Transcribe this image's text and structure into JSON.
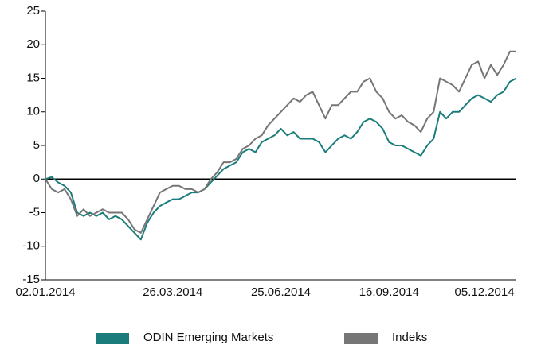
{
  "chart_data": {
    "type": "line",
    "categories": [
      "02.01.2014",
      null,
      null,
      null,
      null,
      null,
      null,
      null,
      null,
      null,
      null,
      null,
      null,
      null,
      null,
      null,
      null,
      null,
      null,
      null,
      "26.03.2014",
      null,
      null,
      null,
      null,
      null,
      null,
      null,
      null,
      null,
      null,
      null,
      null,
      null,
      null,
      null,
      null,
      "25.06.2014",
      null,
      null,
      null,
      null,
      null,
      null,
      null,
      null,
      null,
      null,
      null,
      null,
      null,
      null,
      null,
      null,
      "16.09.2014",
      null,
      null,
      null,
      null,
      null,
      null,
      null,
      null,
      null,
      null,
      null,
      null,
      null,
      null,
      "05.12.2014",
      null,
      null,
      null,
      null,
      null
    ],
    "series": [
      {
        "name": "ODIN Emerging Markets",
        "color": "#1a7d7b",
        "values": [
          0,
          0.3,
          -0.5,
          -1,
          -2,
          -5,
          -5.5,
          -5,
          -5.5,
          -5,
          -6,
          -5.5,
          -6,
          -7,
          -8,
          -9,
          -6.5,
          -5,
          -4,
          -3.5,
          -3,
          -3,
          -2.5,
          -2,
          -2,
          -1.5,
          -0.5,
          0.5,
          1.5,
          2,
          2.5,
          4,
          4.5,
          4,
          5.5,
          6,
          6.5,
          7.5,
          6.5,
          7,
          6,
          6,
          6,
          5.5,
          4,
          5,
          6,
          6.5,
          6,
          7,
          8.5,
          9,
          8.5,
          7.5,
          5.5,
          5,
          5,
          4.5,
          4,
          3.5,
          5,
          6,
          10,
          9,
          10,
          10,
          11,
          12,
          12.5,
          12,
          11.5,
          12.5,
          13,
          14.5,
          15
        ]
      },
      {
        "name": "Indeks",
        "color": "#767676",
        "values": [
          0,
          -1.5,
          -2,
          -1.5,
          -3,
          -5.5,
          -4.5,
          -5.5,
          -5,
          -4.5,
          -5,
          -5,
          -5,
          -6,
          -7.5,
          -8,
          -6,
          -4,
          -2,
          -1.5,
          -1,
          -1,
          -1.5,
          -1.5,
          -2,
          -1.5,
          0,
          1,
          2.5,
          2.5,
          3,
          4.5,
          5,
          6,
          6.5,
          8,
          9,
          10,
          11,
          12,
          11.5,
          12.5,
          13,
          11,
          9,
          11,
          11,
          12,
          13,
          13,
          14.5,
          15,
          13,
          12,
          10,
          9,
          9.5,
          8.5,
          8,
          7,
          9,
          10,
          15,
          14.5,
          14,
          13,
          15,
          17,
          17.5,
          15,
          17,
          15.5,
          17,
          19,
          19
        ]
      }
    ],
    "ylim": [
      -15,
      25
    ],
    "yticks": [
      -15,
      -10,
      -5,
      0,
      5,
      10,
      15,
      20,
      25
    ],
    "zero_line": true,
    "legend": "bottom"
  }
}
